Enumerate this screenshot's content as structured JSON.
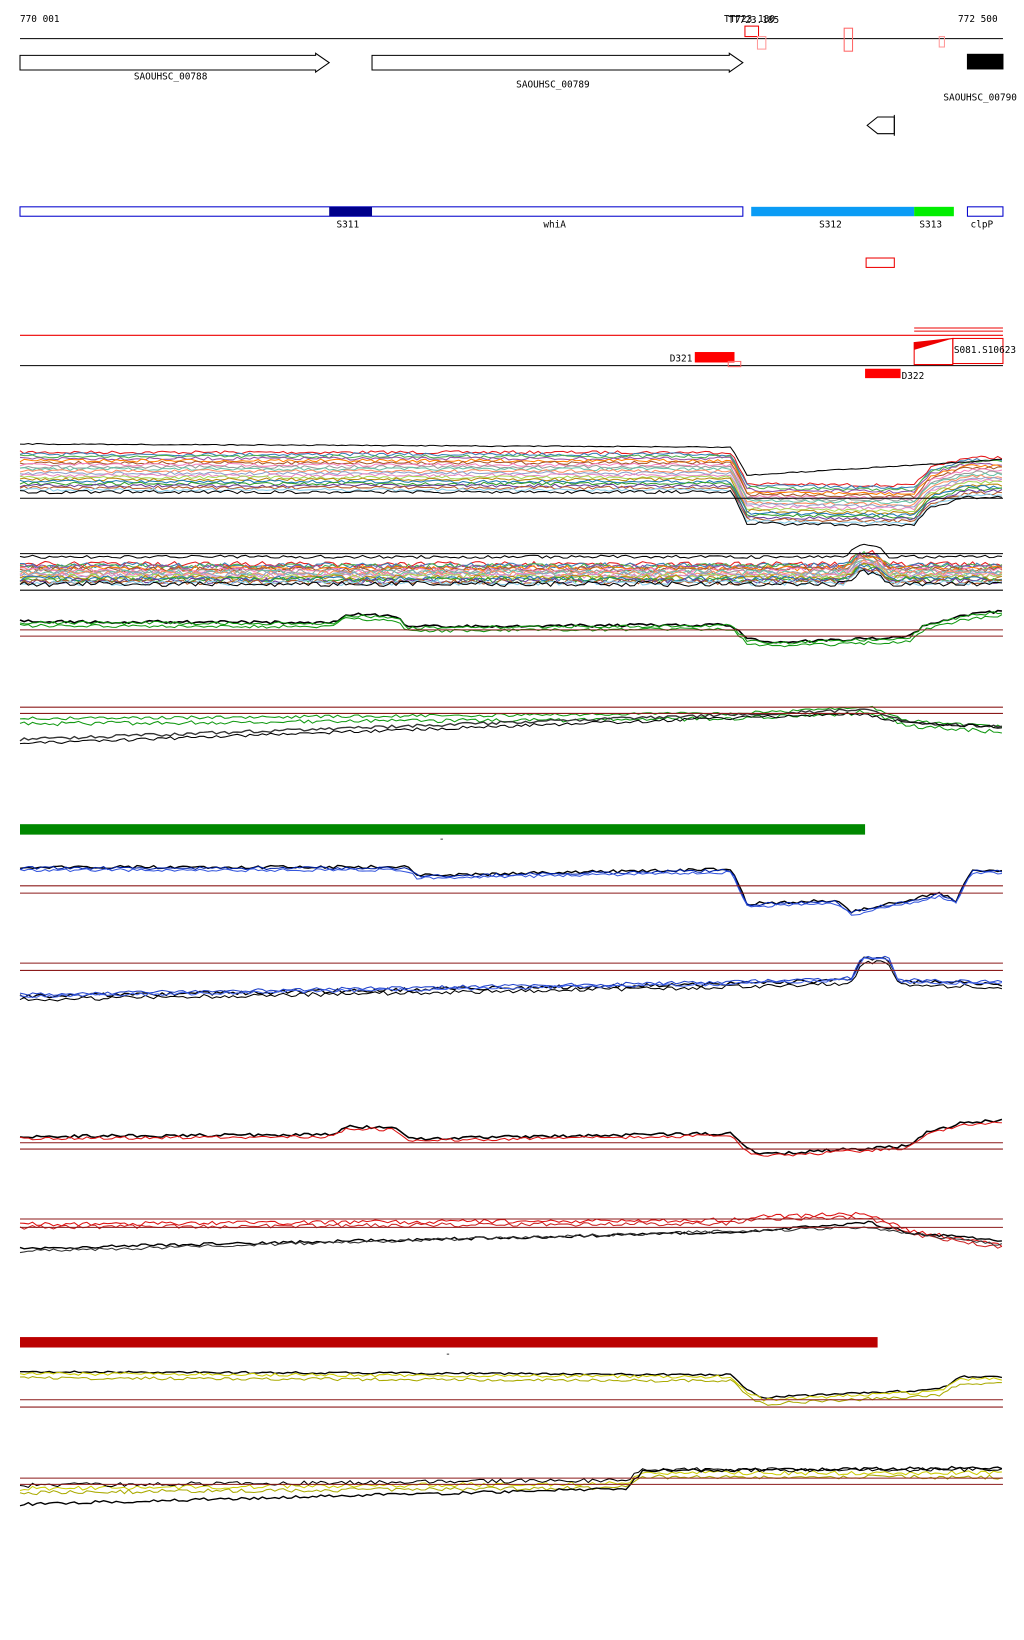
{
  "ruler": {
    "start": "770 001",
    "end": "772 500",
    "marks": [
      "TT723.180",
      "TT723.185"
    ]
  },
  "genes": [
    "SAOUHSC_00788",
    "SAOUHSC_00789",
    "SAOUHSC_00790"
  ],
  "segments": [
    "S311",
    "whiA",
    "S312",
    "S313",
    "clpP"
  ],
  "features": [
    "D321",
    "D322",
    "S081.S10623"
  ],
  "bar_labels": [
    "-",
    "-"
  ]
}
